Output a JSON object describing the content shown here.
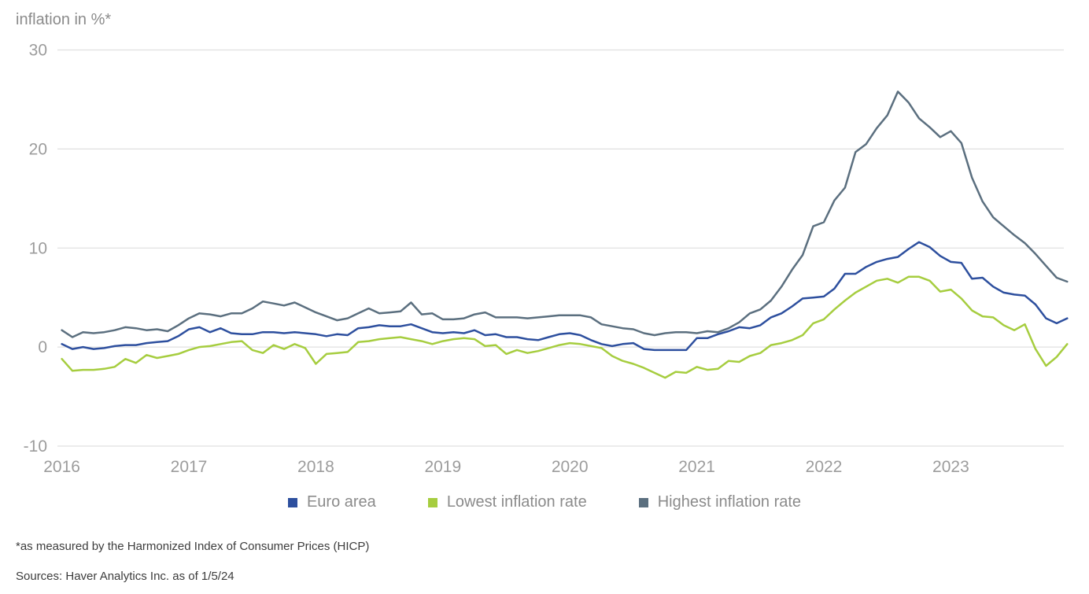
{
  "header": {
    "title": "inflation in %*"
  },
  "chart_data": {
    "type": "line",
    "title": "inflation in %*",
    "x_unit": "month",
    "x_range": [
      "2016-01",
      "2023-12"
    ],
    "xticks": [
      "2016",
      "2017",
      "2018",
      "2019",
      "2020",
      "2021",
      "2022",
      "2023"
    ],
    "yticks": [
      30,
      20,
      10,
      0,
      -10
    ],
    "ylim": [
      -10,
      30
    ],
    "grid": "horizontal",
    "legend_position": "bottom",
    "series": [
      {
        "name": "Euro area",
        "color": "#2d4f9e",
        "values": [
          0.3,
          -0.2,
          0.0,
          -0.2,
          -0.1,
          0.1,
          0.2,
          0.2,
          0.4,
          0.5,
          0.6,
          1.1,
          1.8,
          2.0,
          1.5,
          1.9,
          1.4,
          1.3,
          1.3,
          1.5,
          1.5,
          1.4,
          1.5,
          1.4,
          1.3,
          1.1,
          1.3,
          1.2,
          1.9,
          2.0,
          2.2,
          2.1,
          2.1,
          2.3,
          1.9,
          1.5,
          1.4,
          1.5,
          1.4,
          1.7,
          1.2,
          1.3,
          1.0,
          1.0,
          0.8,
          0.7,
          1.0,
          1.3,
          1.4,
          1.2,
          0.7,
          0.3,
          0.1,
          0.3,
          0.4,
          -0.2,
          -0.3,
          -0.3,
          -0.3,
          -0.3,
          0.9,
          0.9,
          1.3,
          1.6,
          2.0,
          1.9,
          2.2,
          3.0,
          3.4,
          4.1,
          4.9,
          5.0,
          5.1,
          5.9,
          7.4,
          7.4,
          8.1,
          8.6,
          8.9,
          9.1,
          9.9,
          10.6,
          10.1,
          9.2,
          8.6,
          8.5,
          6.9,
          7.0,
          6.1,
          5.5,
          5.3,
          5.2,
          4.3,
          2.9,
          2.4,
          2.9
        ]
      },
      {
        "name": "Lowest inflation rate",
        "color": "#a6cd3f",
        "values": [
          -1.2,
          -2.4,
          -2.3,
          -2.3,
          -2.2,
          -2.0,
          -1.2,
          -1.6,
          -0.8,
          -1.1,
          -0.9,
          -0.7,
          -0.3,
          0.0,
          0.1,
          0.3,
          0.5,
          0.6,
          -0.3,
          -0.6,
          0.2,
          -0.2,
          0.3,
          -0.1,
          -1.7,
          -0.7,
          -0.6,
          -0.5,
          0.5,
          0.6,
          0.8,
          0.9,
          1.0,
          0.8,
          0.6,
          0.3,
          0.6,
          0.8,
          0.9,
          0.8,
          0.1,
          0.2,
          -0.7,
          -0.3,
          -0.6,
          -0.4,
          -0.1,
          0.2,
          0.4,
          0.3,
          0.1,
          -0.1,
          -0.9,
          -1.4,
          -1.7,
          -2.1,
          -2.6,
          -3.1,
          -2.5,
          -2.6,
          -2.0,
          -2.3,
          -2.2,
          -1.4,
          -1.5,
          -0.9,
          -0.6,
          0.2,
          0.4,
          0.7,
          1.2,
          2.4,
          2.8,
          3.8,
          4.7,
          5.5,
          6.1,
          6.7,
          6.9,
          6.5,
          7.1,
          7.1,
          6.7,
          5.6,
          5.8,
          4.9,
          3.7,
          3.1,
          3.0,
          2.2,
          1.7,
          2.3,
          -0.2,
          -1.9,
          -1.0,
          0.3
        ]
      },
      {
        "name": "Highest inflation rate",
        "color": "#5b6f7f",
        "values": [
          1.7,
          1.0,
          1.5,
          1.4,
          1.5,
          1.7,
          2.0,
          1.9,
          1.7,
          1.8,
          1.6,
          2.2,
          2.9,
          3.4,
          3.3,
          3.1,
          3.4,
          3.4,
          3.9,
          4.6,
          4.4,
          4.2,
          4.5,
          4.0,
          3.5,
          3.1,
          2.7,
          2.9,
          3.4,
          3.9,
          3.4,
          3.5,
          3.6,
          4.5,
          3.3,
          3.4,
          2.8,
          2.8,
          2.9,
          3.3,
          3.5,
          3.0,
          3.0,
          3.0,
          2.9,
          3.0,
          3.1,
          3.2,
          3.2,
          3.2,
          3.0,
          2.3,
          2.1,
          1.9,
          1.8,
          1.4,
          1.2,
          1.4,
          1.5,
          1.5,
          1.4,
          1.6,
          1.5,
          1.9,
          2.5,
          3.4,
          3.8,
          4.7,
          6.1,
          7.8,
          9.3,
          12.2,
          12.6,
          14.8,
          16.1,
          19.7,
          20.5,
          22.1,
          23.4,
          25.8,
          24.7,
          23.1,
          22.2,
          21.2,
          21.8,
          20.6,
          17.1,
          14.7,
          13.1,
          12.2,
          11.3,
          10.5,
          9.4,
          8.2,
          7.0,
          6.6
        ]
      }
    ]
  },
  "footnotes": {
    "definition": "*as measured by the Harmonized Index of Consumer Prices (HICP)",
    "sources": "Sources: Haver Analytics Inc. as of 1/5/24"
  }
}
